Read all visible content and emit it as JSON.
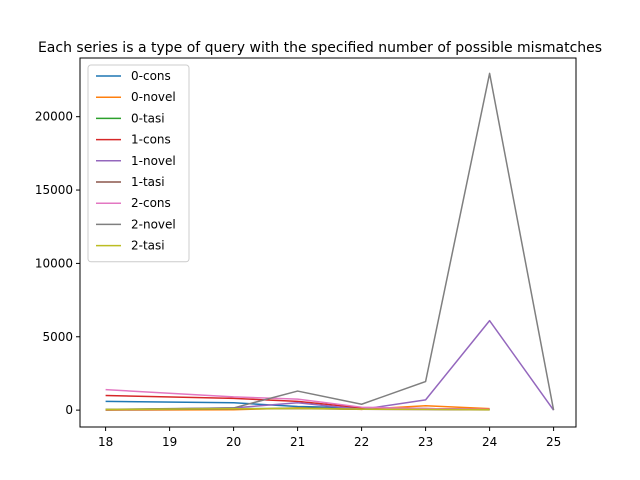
{
  "chart_data": {
    "type": "line",
    "title": "Each series is a type of query with the specified number of possible mismatches",
    "xlabel": "",
    "ylabel": "",
    "xlim": [
      17.6,
      25.35
    ],
    "ylim": [
      -1150,
      24000
    ],
    "xticks": [
      18,
      19,
      20,
      21,
      22,
      23,
      24,
      25
    ],
    "yticks": [
      0,
      5000,
      10000,
      15000,
      20000
    ],
    "grid": false,
    "legend": "top-left",
    "series": [
      {
        "name": "0-cons",
        "color": "#1f77b4",
        "x": [
          18,
          20,
          21,
          22,
          23,
          24
        ],
        "y": [
          600,
          500,
          250,
          150,
          100,
          50
        ]
      },
      {
        "name": "0-novel",
        "color": "#ff7f0e",
        "x": [
          18,
          20,
          21,
          22,
          23,
          24
        ],
        "y": [
          0,
          30,
          150,
          50,
          300,
          100
        ]
      },
      {
        "name": "0-tasi",
        "color": "#2ca02c",
        "x": [
          18,
          20,
          21,
          22,
          23,
          24
        ],
        "y": [
          50,
          100,
          120,
          80,
          60,
          40
        ]
      },
      {
        "name": "1-cons",
        "color": "#d62728",
        "x": [
          18,
          20,
          21,
          22,
          23,
          24
        ],
        "y": [
          1000,
          800,
          600,
          150,
          100,
          50
        ]
      },
      {
        "name": "1-novel",
        "color": "#9467bd",
        "x": [
          18,
          20,
          21,
          22,
          23,
          24,
          25
        ],
        "y": [
          20,
          150,
          500,
          50,
          700,
          6100,
          0
        ]
      },
      {
        "name": "1-tasi",
        "color": "#8c564b",
        "x": [
          18,
          20,
          21,
          22,
          23,
          24
        ],
        "y": [
          30,
          80,
          100,
          60,
          40,
          20
        ]
      },
      {
        "name": "2-cons",
        "color": "#e377c2",
        "x": [
          18,
          20,
          21,
          22,
          23,
          24
        ],
        "y": [
          1400,
          900,
          750,
          200,
          100,
          50
        ]
      },
      {
        "name": "2-novel",
        "color": "#7f7f7f",
        "x": [
          18,
          20,
          21,
          22,
          23,
          24,
          25
        ],
        "y": [
          50,
          150,
          1300,
          400,
          1950,
          22950,
          0
        ]
      },
      {
        "name": "2-tasi",
        "color": "#bcbd22",
        "x": [
          18,
          20,
          21,
          22,
          23,
          24
        ],
        "y": [
          40,
          90,
          110,
          70,
          50,
          30
        ]
      }
    ]
  }
}
